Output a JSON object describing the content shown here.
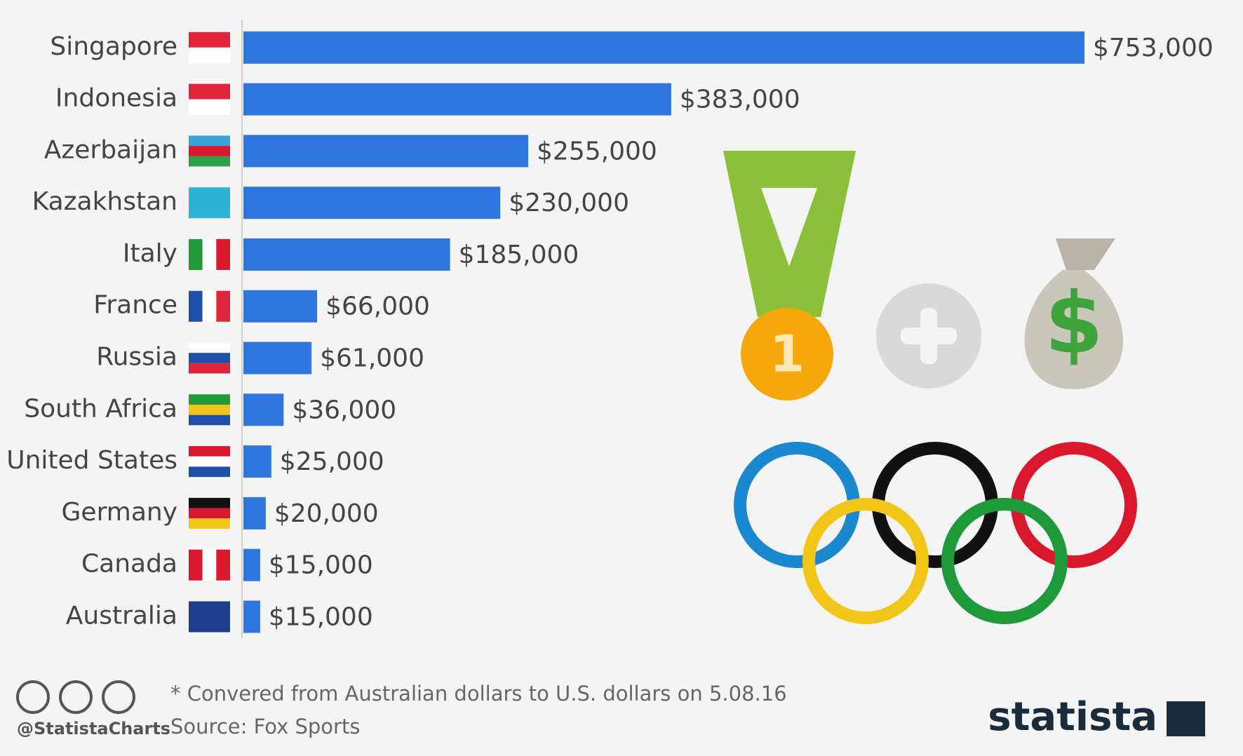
{
  "chart_data": {
    "type": "bar",
    "orientation": "horizontal",
    "categories": [
      "Singapore",
      "Indonesia",
      "Azerbaijan",
      "Kazakhstan",
      "Italy",
      "France",
      "Russia",
      "South Africa",
      "United States",
      "Germany",
      "Canada",
      "Australia"
    ],
    "values": [
      753000,
      383000,
      255000,
      230000,
      185000,
      66000,
      61000,
      36000,
      25000,
      20000,
      15000,
      15000
    ],
    "value_labels": [
      "$753,000",
      "$383,000",
      "$255,000",
      "$230,000",
      "$185,000",
      "$66,000",
      "$61,000",
      "$36,000",
      "$25,000",
      "$20,000",
      "$15,000",
      "$15,000"
    ],
    "color": "#2f76de",
    "footnote": "* Convered from Australian dollars to U.S. dollars on 5.08.16",
    "source": "Source: Fox Sports",
    "credit": "@StatistaCharts",
    "brand": "statista"
  }
}
